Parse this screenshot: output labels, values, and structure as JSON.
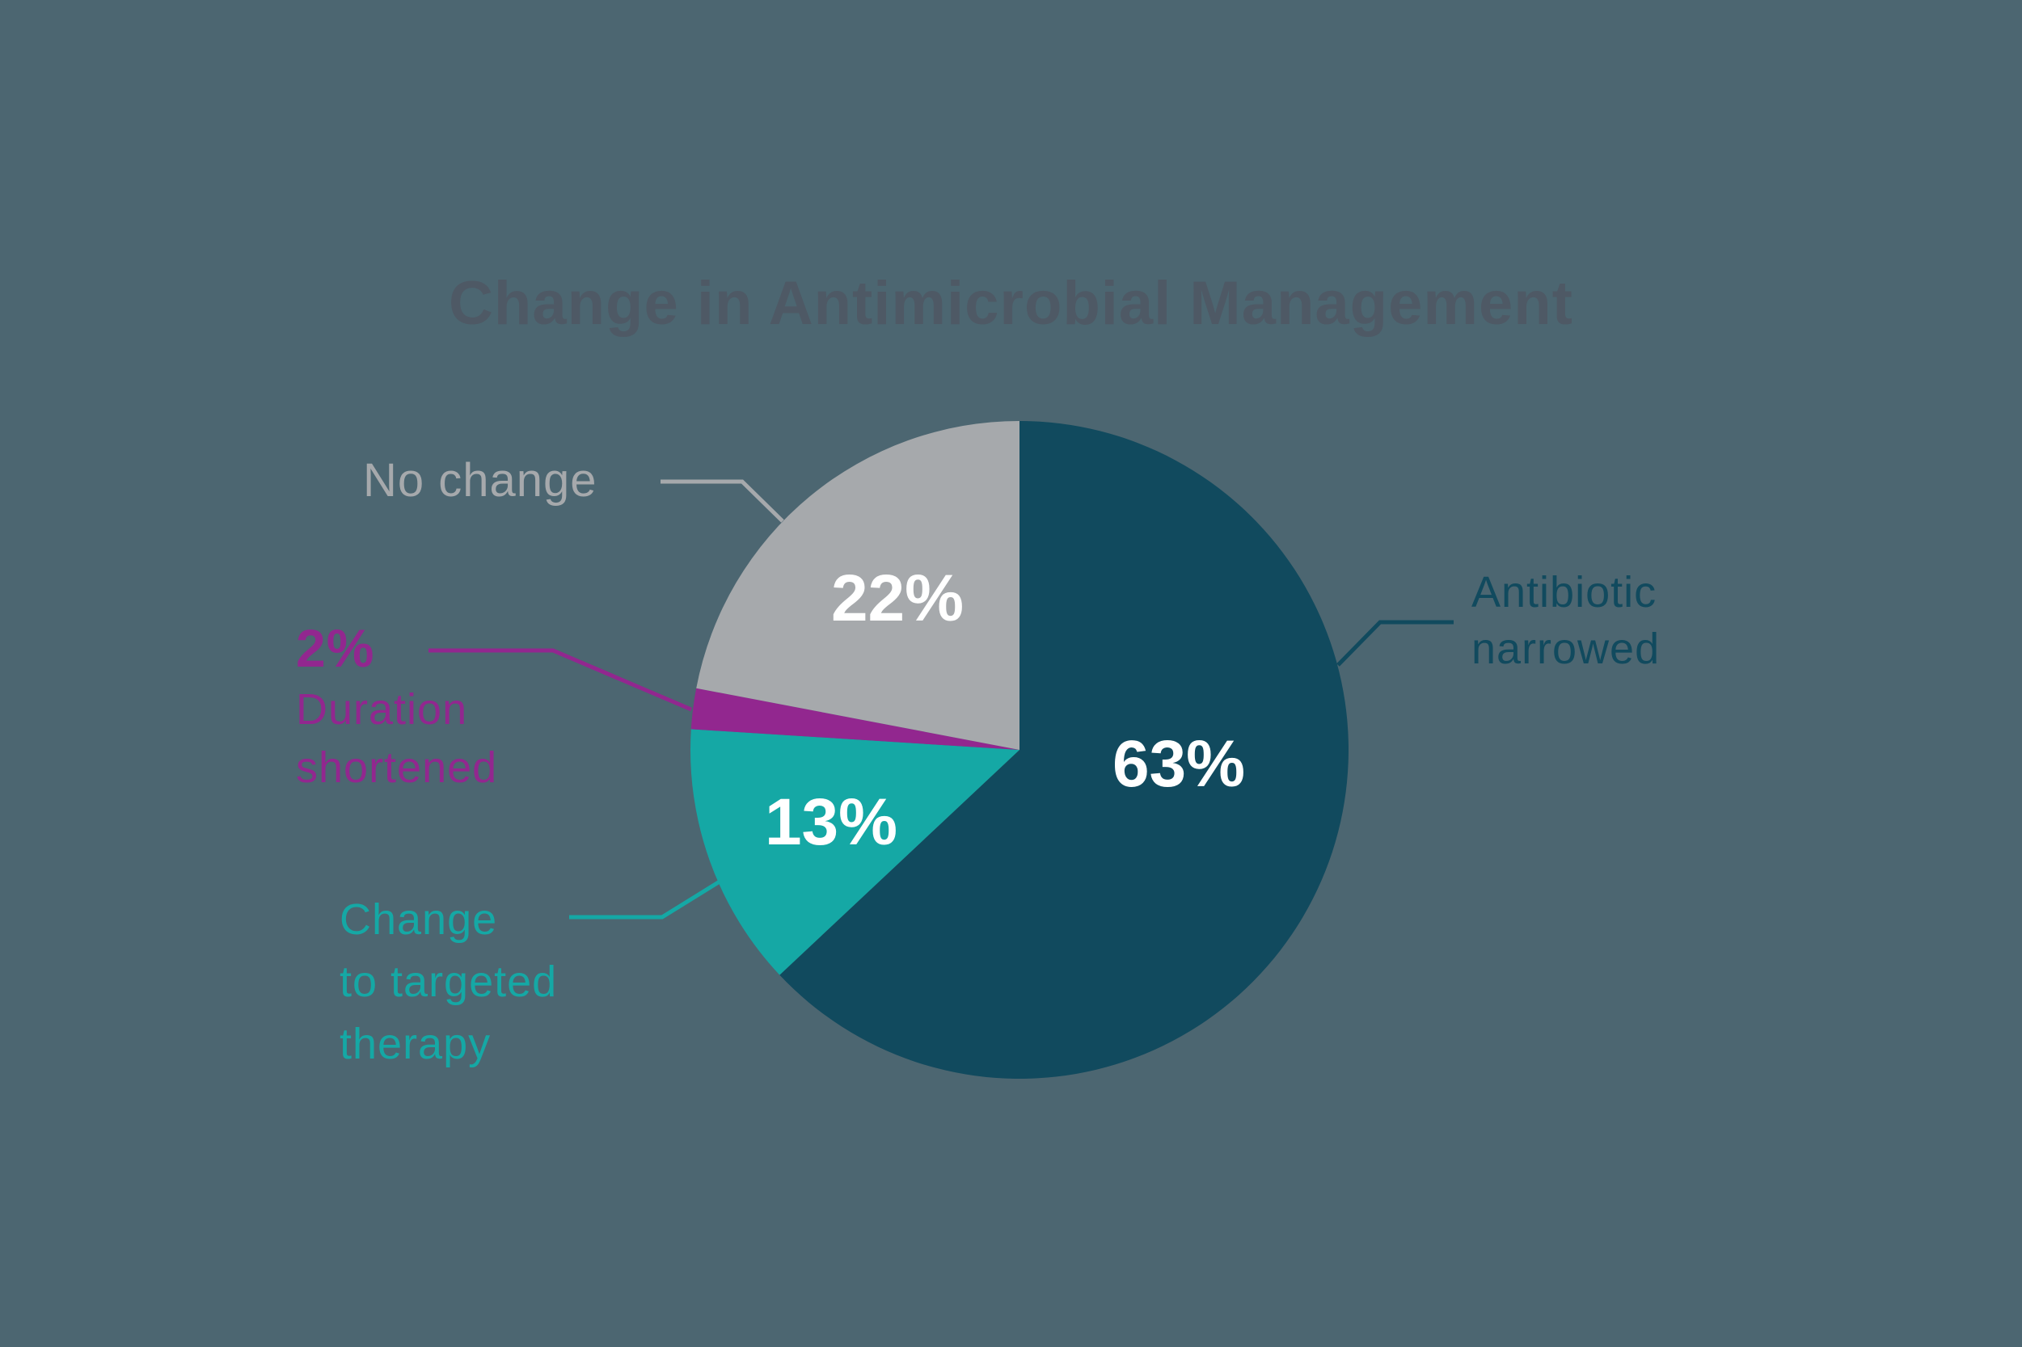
{
  "title": "Change in Antimicrobial Management",
  "colors": {
    "background": "#4C6671",
    "title_text": "#4E5965",
    "percent_text": "#FFFFFF"
  },
  "chart_data": {
    "type": "pie",
    "title": "Change in Antimicrobial Management",
    "start_angle_deg": 0,
    "direction": "clockwise",
    "legend_position": "callout-labels",
    "slices": [
      {
        "label": "Antibiotic narrowed",
        "label_lines": [
          "Antibiotic",
          "narrowed"
        ],
        "value": 63,
        "pct_label": "63%",
        "color": "#114A5E"
      },
      {
        "label": "Change to targeted therapy",
        "label_lines": [
          "Change",
          "to targeted",
          "therapy"
        ],
        "value": 13,
        "pct_label": "13%",
        "color": "#15A8A5"
      },
      {
        "label": "Duration shortened",
        "label_lines": [
          "Duration",
          "shortened"
        ],
        "value": 2,
        "pct_label": "2%",
        "color": "#92278F"
      },
      {
        "label": "No change",
        "label_lines": [
          "No change"
        ],
        "value": 22,
        "pct_label": "22%",
        "color": "#A6A9AC"
      }
    ]
  }
}
